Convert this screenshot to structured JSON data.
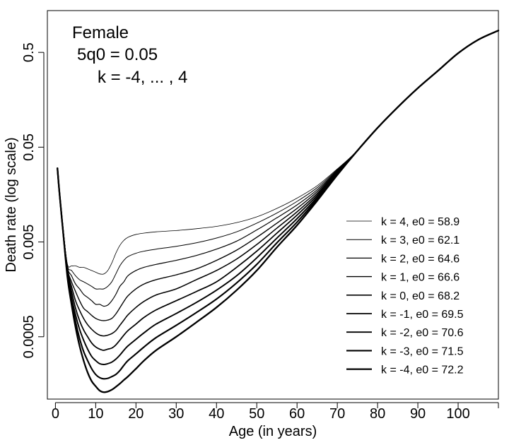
{
  "chart_data": {
    "type": "line",
    "title": "",
    "xlabel": "Age (in years)",
    "ylabel": "Death rate (log scale)",
    "log_scale_y": true,
    "xlim": [
      -2,
      110
    ],
    "ylim": [
      0.00011,
      1.38
    ],
    "x_ticks": [
      {
        "value": 0,
        "label": "0"
      },
      {
        "value": 10,
        "label": "10"
      },
      {
        "value": 20,
        "label": "20"
      },
      {
        "value": 30,
        "label": "30"
      },
      {
        "value": 40,
        "label": "40"
      },
      {
        "value": 50,
        "label": "50"
      },
      {
        "value": 60,
        "label": "60"
      },
      {
        "value": 70,
        "label": "70"
      },
      {
        "value": 80,
        "label": "80"
      },
      {
        "value": 90,
        "label": "90"
      },
      {
        "value": 100,
        "label": "100"
      },
      {
        "value": 110,
        "label": ""
      }
    ],
    "y_ticks": [
      {
        "value": 0.0005,
        "label": "0.0005"
      },
      {
        "value": 0.005,
        "label": "0.005"
      },
      {
        "value": 0.05,
        "label": "0.05"
      },
      {
        "value": 0.5,
        "label": "0.5"
      }
    ],
    "annotations": [
      "Female",
      "5q0 = 0.05",
      "k = -4, ... , 4"
    ],
    "legend_position": "bottom-right",
    "grid": false,
    "line_color": "#000000",
    "x": [
      0.5,
      1,
      2,
      3,
      4,
      5,
      6,
      7,
      8,
      9,
      10,
      11,
      12,
      13,
      14,
      15,
      16,
      17,
      18,
      20,
      22,
      25,
      30,
      35,
      40,
      45,
      50,
      55,
      60,
      65,
      70,
      75,
      80,
      85,
      90,
      95,
      100,
      105,
      110
    ],
    "series": [
      {
        "name": "k = 4, e0 = 58.9",
        "k": 4,
        "values": [
          0.03,
          0.0165,
          0.0062,
          0.0029,
          0.0028,
          0.0028,
          0.0027,
          0.0027,
          0.0026,
          0.0025,
          0.0024,
          0.0023,
          0.0023,
          0.0025,
          0.003,
          0.0038,
          0.0046,
          0.0052,
          0.0056,
          0.006,
          0.0062,
          0.0064,
          0.0066,
          0.0069,
          0.0073,
          0.008,
          0.0092,
          0.0113,
          0.0145,
          0.0196,
          0.0295,
          0.046,
          0.08,
          0.132,
          0.21,
          0.32,
          0.49,
          0.68,
          0.85
        ]
      },
      {
        "name": "k = 3, e0 = 62.1",
        "k": 3,
        "values": [
          0.03,
          0.0165,
          0.0062,
          0.0028,
          0.0025,
          0.0022,
          0.002,
          0.0019,
          0.0018,
          0.0017,
          0.0016,
          0.0016,
          0.0016,
          0.0017,
          0.0019,
          0.0023,
          0.0028,
          0.0032,
          0.0035,
          0.0038,
          0.004,
          0.0042,
          0.0045,
          0.0049,
          0.0055,
          0.0064,
          0.0079,
          0.0101,
          0.0134,
          0.0187,
          0.029,
          0.046,
          0.08,
          0.132,
          0.21,
          0.32,
          0.49,
          0.68,
          0.85
        ]
      },
      {
        "name": "k = 2, e0 = 64.6",
        "k": 2,
        "values": [
          0.03,
          0.0165,
          0.0061,
          0.0027,
          0.0022,
          0.0018,
          0.0016,
          0.0014,
          0.0013,
          0.0012,
          0.0011,
          0.0011,
          0.00105,
          0.00108,
          0.0012,
          0.0014,
          0.0017,
          0.0019,
          0.0022,
          0.0025,
          0.0027,
          0.0029,
          0.0032,
          0.0036,
          0.0042,
          0.0051,
          0.0067,
          0.009,
          0.0123,
          0.0178,
          0.0285,
          0.046,
          0.08,
          0.132,
          0.21,
          0.32,
          0.49,
          0.68,
          0.85
        ]
      },
      {
        "name": "k = 1, e0 = 66.6",
        "k": 1,
        "values": [
          0.03,
          0.0165,
          0.0061,
          0.0026,
          0.0019,
          0.0015,
          0.0012,
          0.001,
          0.00092,
          0.00084,
          0.00078,
          0.00075,
          0.00074,
          0.00075,
          0.00078,
          0.00087,
          0.00101,
          0.00118,
          0.00135,
          0.0016,
          0.0018,
          0.002,
          0.00225,
          0.0026,
          0.0032,
          0.0041,
          0.0056,
          0.0079,
          0.0113,
          0.017,
          0.028,
          0.046,
          0.08,
          0.132,
          0.21,
          0.32,
          0.49,
          0.68,
          0.85
        ]
      },
      {
        "name": "k = 0, e0 = 68.2",
        "k": 0,
        "values": [
          0.03,
          0.0165,
          0.006,
          0.0025,
          0.0017,
          0.0012,
          0.00095,
          0.00078,
          0.00067,
          0.0006,
          0.00055,
          0.00052,
          0.00051,
          0.00052,
          0.00054,
          0.00058,
          0.00066,
          0.00075,
          0.00085,
          0.00102,
          0.00118,
          0.00138,
          0.0016,
          0.002,
          0.0025,
          0.0033,
          0.0047,
          0.007,
          0.0104,
          0.0162,
          0.0275,
          0.046,
          0.08,
          0.132,
          0.21,
          0.32,
          0.49,
          0.68,
          0.85
        ]
      },
      {
        "name": "k = -1, e0 = 69.5",
        "k": -1,
        "values": [
          0.03,
          0.0165,
          0.006,
          0.0024,
          0.0015,
          0.001,
          0.00074,
          0.00059,
          0.0005,
          0.00043,
          0.00039,
          0.00037,
          0.00036,
          0.00037,
          0.00038,
          0.00041,
          0.00046,
          0.00052,
          0.00058,
          0.00068,
          0.0008,
          0.00096,
          0.0012,
          0.0015,
          0.0019,
          0.0027,
          0.004,
          0.0062,
          0.0096,
          0.0155,
          0.027,
          0.046,
          0.08,
          0.132,
          0.21,
          0.32,
          0.49,
          0.68,
          0.85
        ]
      },
      {
        "name": "k = -2, e0 = 70.6",
        "k": -2,
        "values": [
          0.03,
          0.0165,
          0.0059,
          0.0023,
          0.0013,
          0.00085,
          0.0006,
          0.00046,
          0.00037,
          0.00031,
          0.00028,
          0.00026,
          0.000255,
          0.00026,
          0.00027,
          0.00029,
          0.00032,
          0.00036,
          0.0004,
          0.00047,
          0.00055,
          0.00068,
          0.00088,
          0.00115,
          0.00155,
          0.0022,
          0.0034,
          0.0055,
          0.0088,
          0.0148,
          0.0265,
          0.046,
          0.08,
          0.132,
          0.21,
          0.32,
          0.49,
          0.68,
          0.85
        ]
      },
      {
        "name": "k = -3, e0 = 71.5",
        "k": -3,
        "values": [
          0.03,
          0.0165,
          0.0058,
          0.0022,
          0.0012,
          0.00072,
          0.00048,
          0.00035,
          0.00028,
          0.00023,
          0.0002,
          0.000185,
          0.00018,
          0.000182,
          0.00019,
          0.0002,
          0.00022,
          0.00025,
          0.00028,
          0.00033,
          0.00039,
          0.00049,
          0.00066,
          0.0009,
          0.00125,
          0.00185,
          0.0029,
          0.0049,
          0.0081,
          0.0142,
          0.026,
          0.046,
          0.08,
          0.132,
          0.21,
          0.32,
          0.49,
          0.68,
          0.85
        ]
      },
      {
        "name": "k = -4, e0 = 72.2",
        "k": -4,
        "values": [
          0.03,
          0.0165,
          0.0058,
          0.0021,
          0.0011,
          0.00063,
          0.0004,
          0.00028,
          0.00021,
          0.00017,
          0.00015,
          0.000135,
          0.00013,
          0.000132,
          0.000138,
          0.000148,
          0.00016,
          0.000175,
          0.00019,
          0.00023,
          0.00028,
          0.00036,
          0.0005,
          0.00071,
          0.00102,
          0.00155,
          0.0025,
          0.0044,
          0.0075,
          0.0136,
          0.0255,
          0.046,
          0.08,
          0.132,
          0.21,
          0.32,
          0.49,
          0.68,
          0.85
        ]
      }
    ]
  }
}
